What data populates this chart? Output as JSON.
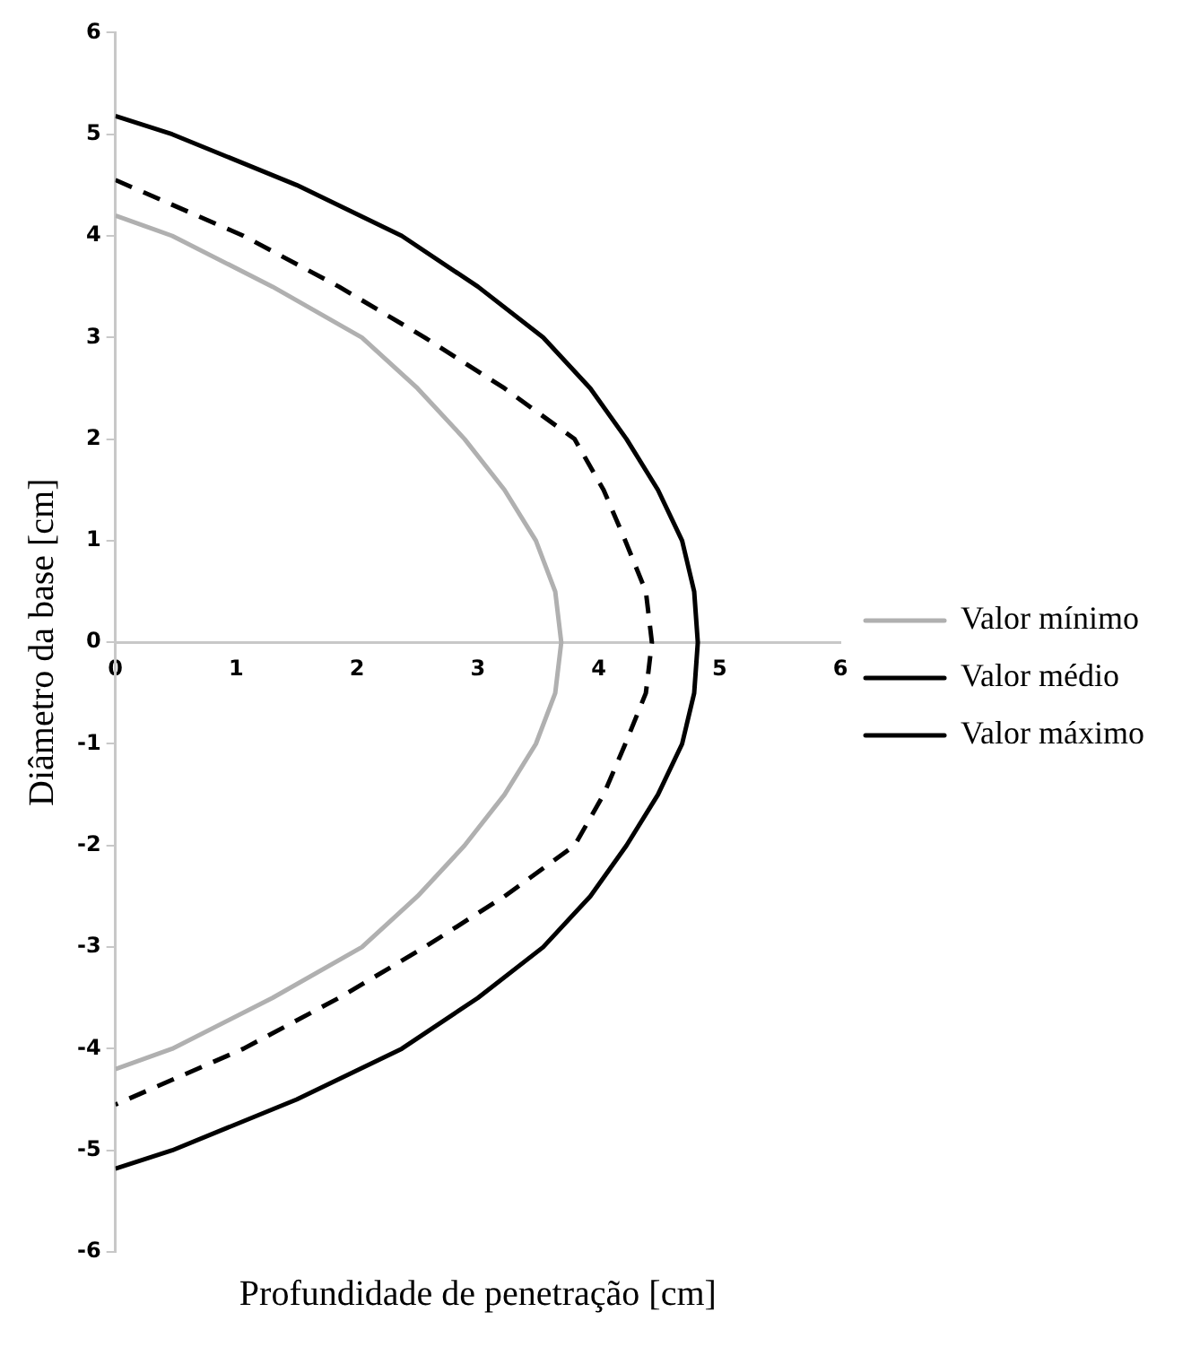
{
  "chart_data": {
    "type": "line",
    "xlabel": "Profundidade de penetração [cm]",
    "ylabel": "Diâmetro da base [cm]",
    "xlim": [
      0,
      6
    ],
    "xticks": [
      0,
      1,
      2,
      3,
      4,
      5,
      6
    ],
    "ylim": [
      -6,
      6
    ],
    "yticks": [
      -6,
      -5,
      -4,
      -3,
      -2,
      -1,
      0,
      1,
      2,
      3,
      4,
      5,
      6
    ],
    "grid": false,
    "legend": "right",
    "marker": "none",
    "series": [
      {
        "name": "Valor mínimo",
        "color": "#b0b0b0",
        "line_style": "solid",
        "x": [
          0,
          0.47,
          1.3,
          2.04,
          2.5,
          2.89,
          3.22,
          3.48,
          3.64,
          3.69,
          3.64,
          3.48,
          3.22,
          2.89,
          2.5,
          2.04,
          1.3,
          0.47,
          0
        ],
        "values": [
          4.2,
          4,
          3.5,
          3,
          2.5,
          2,
          1.5,
          1,
          0.5,
          0,
          -0.5,
          -1,
          -1.5,
          -2,
          -2.5,
          -3,
          -3.5,
          -4,
          -4.2
        ]
      },
      {
        "name": "Valor médio",
        "color": "#000000",
        "line_style": "dashed",
        "x": [
          0,
          1.06,
          1.85,
          2.56,
          3.22,
          3.8,
          4.04,
          4.22,
          4.39,
          4.44,
          4.39,
          4.22,
          4.04,
          3.8,
          3.22,
          2.56,
          1.85,
          1.06,
          0
        ],
        "values": [
          4.55,
          4,
          3.5,
          3,
          2.5,
          2,
          1.5,
          1,
          0.5,
          0,
          -0.5,
          -1,
          -1.5,
          -2,
          -2.5,
          -3,
          -3.5,
          -4,
          -4.55
        ]
      },
      {
        "name": "Valor máximo",
        "color": "#000000",
        "line_style": "solid",
        "x": [
          0,
          0.47,
          1.5,
          2.37,
          3.0,
          3.54,
          3.93,
          4.23,
          4.49,
          4.69,
          4.79,
          4.82,
          4.79,
          4.69,
          4.49,
          4.23,
          3.93,
          3.54,
          3.0,
          2.37,
          1.5,
          0.47,
          0
        ],
        "values": [
          5.18,
          5,
          4.5,
          4,
          3.5,
          3,
          2.5,
          2,
          1.5,
          1,
          0.5,
          0,
          -0.5,
          -1,
          -1.5,
          -2,
          -2.5,
          -3,
          -3.5,
          -4,
          -4.5,
          -5,
          -5.18
        ]
      }
    ]
  }
}
